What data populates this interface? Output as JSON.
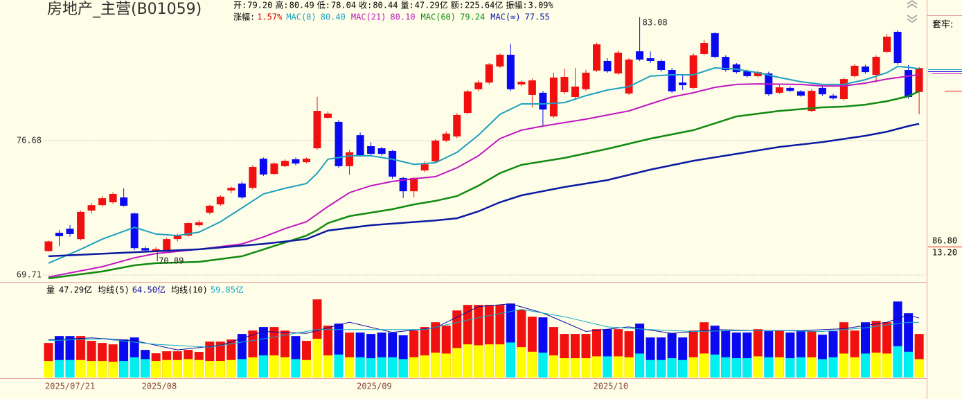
{
  "chart_data": [
    {
      "type": "candlestick",
      "title": "房地产_主营(B01059)",
      "quote": [
        {
          "label": "开:",
          "value": "79.20"
        },
        {
          "label": "高:",
          "value": "80.49"
        },
        {
          "label": "低:",
          "value": "78.04"
        },
        {
          "label": "收:",
          "value": "80.44"
        },
        {
          "label": "量:",
          "value": "47.29亿"
        },
        {
          "label": "额:",
          "value": "225.64亿"
        },
        {
          "label": "振幅:",
          "value": "3.09%"
        }
      ],
      "change": {
        "label": "涨幅:",
        "value": "1.57%",
        "color": "#e00000"
      },
      "categories": [
        "2025/07/21",
        null,
        null,
        null,
        null,
        null,
        null,
        null,
        null,
        "2025/08",
        null,
        null,
        null,
        null,
        null,
        null,
        null,
        null,
        null,
        null,
        null,
        null,
        null,
        null,
        null,
        null,
        null,
        null,
        null,
        "2025/09",
        null,
        null,
        null,
        null,
        null,
        null,
        null,
        null,
        null,
        null,
        null,
        null,
        null,
        null,
        null,
        null,
        null,
        null,
        null,
        null,
        null,
        "2025/10",
        null,
        null,
        null,
        null,
        null,
        null,
        null,
        null,
        null,
        null,
        null,
        null,
        null,
        null,
        null,
        null,
        null,
        null,
        null,
        null,
        null,
        null,
        null,
        null,
        null,
        null,
        null,
        null,
        null,
        null
      ],
      "open": [
        70.95,
        71.9,
        72.11,
        71.57,
        73.05,
        73.33,
        73.48,
        73.73,
        72.9,
        71.1,
        70.95,
        71.0,
        71.57,
        71.75,
        72.29,
        72.94,
        73.37,
        74.09,
        74.45,
        74.23,
        75.74,
        74.95,
        75.35,
        75.71,
        75.56,
        76.28,
        77.86,
        77.65,
        75.35,
        76.96,
        76.39,
        76.28,
        76.14,
        74.74,
        74.05,
        75.13,
        75.6,
        76.68,
        76.89,
        78.11,
        79.34,
        79.69,
        80.52,
        81.13,
        79.59,
        79.05,
        79.16,
        77.93,
        79.19,
        78.94,
        79.34,
        80.31,
        80.81,
        80.16,
        79.12,
        81.31,
        80.95,
        80.81,
        80.34,
        79.69,
        79.41,
        81.17,
        82.25,
        81.02,
        80.63,
        80.27,
        80.02,
        80.16,
        79.16,
        79.41,
        79.23,
        78.22,
        79.41,
        79.01,
        78.83,
        80.02,
        80.52,
        80.09,
        81.28,
        82.32,
        80.34,
        79.2
      ],
      "high": [
        71.5,
        72.05,
        72.3,
        73.05,
        73.45,
        73.8,
        74.0,
        74.2,
        72.95,
        71.2,
        71.15,
        71.65,
        71.85,
        72.45,
        72.55,
        73.35,
        73.85,
        74.3,
        74.55,
        75.4,
        75.8,
        75.55,
        75.7,
        75.8,
        75.8,
        78.95,
        78.2,
        77.75,
        76.2,
        77.1,
        76.6,
        76.35,
        76.2,
        74.8,
        74.8,
        75.6,
        76.75,
        77.15,
        78.1,
        79.3,
        79.8,
        80.7,
        81.2,
        81.7,
        79.8,
        79.9,
        79.25,
        80.2,
        80.4,
        80.45,
        80.35,
        81.75,
        80.95,
        81.35,
        80.95,
        83.08,
        81.3,
        80.9,
        80.45,
        80.1,
        81.2,
        81.9,
        82.3,
        81.1,
        80.7,
        80.35,
        80.3,
        80.25,
        79.55,
        79.5,
        79.3,
        79.35,
        79.5,
        79.1,
        79.95,
        80.65,
        80.6,
        81.1,
        82.2,
        82.4,
        80.6,
        80.49
      ],
      "low": [
        70.92,
        71.2,
        71.7,
        71.5,
        72.9,
        73.25,
        73.4,
        73.25,
        71.0,
        70.92,
        70.89,
        70.95,
        71.45,
        71.7,
        72.2,
        72.85,
        73.3,
        73.95,
        73.65,
        74.15,
        74.85,
        74.9,
        75.3,
        75.4,
        75.5,
        76.2,
        77.8,
        75.25,
        74.9,
        75.85,
        75.9,
        75.9,
        74.7,
        73.7,
        73.75,
        75.05,
        75.55,
        76.6,
        76.8,
        78.05,
        79.25,
        79.6,
        80.45,
        79.25,
        79.5,
        78.4,
        77.4,
        77.85,
        79.1,
        78.85,
        79.25,
        80.25,
        80.2,
        80.1,
        79.05,
        80.8,
        80.7,
        80.25,
        79.15,
        79.3,
        79.35,
        81.1,
        80.95,
        80.25,
        80.15,
        79.95,
        79.95,
        79.0,
        79.1,
        79.2,
        78.95,
        78.15,
        79.0,
        78.8,
        78.75,
        79.95,
        80.15,
        79.7,
        81.2,
        80.6,
        78.85,
        78.04
      ],
      "close": [
        71.45,
        71.72,
        71.83,
        72.98,
        73.33,
        73.69,
        73.91,
        73.3,
        71.1,
        70.98,
        71.05,
        71.57,
        71.75,
        72.4,
        72.44,
        73.3,
        73.77,
        74.23,
        73.73,
        75.31,
        74.92,
        75.49,
        75.63,
        75.49,
        75.74,
        78.22,
        78.08,
        75.35,
        76.07,
        75.92,
        75.99,
        75.99,
        74.81,
        74.05,
        74.74,
        75.45,
        76.68,
        77.04,
        78.01,
        79.23,
        79.69,
        80.63,
        81.13,
        79.34,
        79.73,
        79.8,
        78.29,
        79.95,
        79.98,
        79.48,
        80.2,
        81.67,
        80.27,
        81.24,
        80.88,
        80.88,
        80.81,
        80.34,
        79.23,
        79.55,
        81.1,
        81.74,
        81.02,
        80.34,
        80.23,
        80.02,
        80.23,
        79.08,
        79.44,
        79.26,
        79.01,
        79.26,
        79.08,
        78.87,
        79.87,
        80.56,
        80.23,
        81.02,
        82.07,
        80.7,
        78.94,
        80.44
      ],
      "up_color": "#f01010",
      "down_color": "#0a0af0",
      "series": [
        {
          "name": "MAC(8)",
          "color": "#1ea0c0",
          "width": 2,
          "value_label": "80.40",
          "x": [
            0,
            3,
            5,
            8,
            10,
            12,
            14,
            16,
            18,
            20,
            22,
            24,
            25,
            26,
            28,
            30,
            32,
            34,
            36,
            38,
            40,
            42,
            44,
            46,
            48,
            50,
            52,
            54,
            56,
            58,
            60,
            62,
            64,
            66,
            68,
            70,
            72,
            74,
            76,
            78,
            79,
            80,
            81
          ],
          "values": [
            70.32,
            71.04,
            71.57,
            72.18,
            71.83,
            71.75,
            71.93,
            72.47,
            73.19,
            73.91,
            74.2,
            74.45,
            74.99,
            75.71,
            75.89,
            75.89,
            75.71,
            75.45,
            75.53,
            76.07,
            76.96,
            78.04,
            78.58,
            78.58,
            78.65,
            79.01,
            79.3,
            79.48,
            80.02,
            80.09,
            80.09,
            80.45,
            80.38,
            80.2,
            79.95,
            79.73,
            79.59,
            79.59,
            79.84,
            80.2,
            80.52,
            80.48,
            80.4
          ]
        },
        {
          "name": "MAC(21)",
          "color": "#c018c0",
          "width": 2,
          "value_label": "80.10",
          "x": [
            0,
            5,
            8,
            10,
            14,
            18,
            20,
            22,
            24,
            26,
            28,
            30,
            32,
            34,
            36,
            38,
            40,
            42,
            44,
            46,
            50,
            54,
            56,
            58,
            60,
            62,
            64,
            66,
            70,
            72,
            74,
            76,
            78,
            80,
            81
          ],
          "values": [
            69.6,
            70.14,
            70.6,
            70.82,
            71.04,
            71.32,
            71.68,
            72.11,
            72.47,
            73.26,
            73.98,
            74.34,
            74.56,
            74.7,
            74.81,
            75.27,
            75.89,
            76.78,
            77.22,
            77.43,
            77.79,
            78.22,
            78.58,
            78.94,
            79.16,
            79.44,
            79.59,
            79.62,
            79.59,
            79.51,
            79.51,
            79.66,
            79.87,
            80.02,
            80.1
          ]
        },
        {
          "name": "MAC(60)",
          "color": "#108a10",
          "width": 2.5,
          "value_label": "79.24",
          "x": [
            0,
            5,
            8,
            10,
            14,
            18,
            22,
            24,
            25,
            26,
            28,
            32,
            34,
            36,
            38,
            40,
            42,
            44,
            48,
            52,
            56,
            60,
            62,
            64,
            68,
            72,
            74,
            76,
            78,
            80,
            81
          ],
          "values": [
            69.53,
            69.89,
            70.21,
            70.32,
            70.39,
            70.68,
            71.39,
            71.75,
            72.04,
            72.4,
            72.76,
            73.12,
            73.37,
            73.55,
            73.8,
            74.34,
            74.99,
            75.42,
            75.78,
            76.25,
            76.78,
            77.22,
            77.57,
            77.93,
            78.22,
            78.4,
            78.44,
            78.54,
            78.72,
            78.98,
            79.24
          ]
        },
        {
          "name": "MAC(∞)",
          "color": "#0a1aa0",
          "width": 2.5,
          "value_label": "77.55",
          "x": [
            0,
            8,
            14,
            20,
            24,
            26,
            30,
            36,
            38,
            40,
            42,
            44,
            48,
            52,
            56,
            60,
            64,
            68,
            72,
            76,
            78,
            80,
            81
          ],
          "values": [
            70.68,
            70.89,
            71.04,
            71.32,
            71.57,
            72.01,
            72.29,
            72.54,
            72.65,
            73.01,
            73.48,
            73.84,
            74.27,
            74.63,
            75.17,
            75.63,
            75.99,
            76.35,
            76.6,
            76.93,
            77.14,
            77.43,
            77.55
          ]
        }
      ],
      "ylim": [
        69.42,
        83.97
      ],
      "yticks": [
        69.71,
        76.68
      ],
      "grid": true
    },
    {
      "type": "bar",
      "title": "量",
      "current": "47.29亿",
      "values": [
        37.5,
        45,
        45,
        45,
        39.8,
        37.5,
        36,
        41.3,
        43.5,
        30,
        26.3,
        28.5,
        28.5,
        30,
        27.8,
        39,
        39,
        41.3,
        47.3,
        51,
        54.8,
        54.8,
        51,
        45,
        39.8,
        84.8,
        56.3,
        58.5,
        48.8,
        48.8,
        47.3,
        48.8,
        48.8,
        45.8,
        51,
        54.8,
        60,
        56.3,
        72.8,
        78.8,
        78.8,
        78.8,
        78.8,
        80.3,
        73.5,
        66,
        65.3,
        54.8,
        47.3,
        47.3,
        47.3,
        52.5,
        52.5,
        52.5,
        50.3,
        58.5,
        43.5,
        43.5,
        48,
        43.5,
        51,
        60,
        56.3,
        51,
        48.8,
        48.8,
        52.5,
        50.3,
        51,
        48.8,
        51,
        50.3,
        46.5,
        50.3,
        60,
        51,
        60,
        61.5,
        60,
        82.5,
        69.8,
        47.29
      ],
      "inner_values": [
        18,
        19,
        19,
        19,
        18,
        18,
        17,
        18,
        22,
        20,
        18,
        19,
        19,
        20,
        19,
        18,
        18,
        19,
        20,
        22,
        24,
        24,
        22,
        20,
        19,
        42,
        24,
        25,
        22,
        22,
        21,
        22,
        22,
        20,
        22,
        24,
        27,
        26,
        32,
        36,
        35,
        36,
        36,
        38,
        33,
        28,
        27,
        24,
        21,
        21,
        21,
        23,
        23,
        23,
        22,
        26,
        19,
        19,
        21,
        19,
        22,
        26,
        25,
        22,
        21,
        21,
        23,
        22,
        22,
        21,
        22,
        22,
        20,
        22,
        26,
        22,
        26,
        27,
        26,
        34,
        28,
        20
      ],
      "up_colors": [
        "#f01010",
        "#ffff00"
      ],
      "down_colors": [
        "#0a0af0",
        "#00f0f0"
      ],
      "series": [
        {
          "name": "均线(5)",
          "color": "#0a0aa0",
          "value_label": "64.50亿",
          "x": [
            0,
            4,
            8,
            12,
            16,
            20,
            24,
            28,
            32,
            36,
            40,
            43,
            46,
            50,
            54,
            58,
            62,
            66,
            70,
            74,
            78,
            80,
            81
          ],
          "values": [
            41,
            43,
            40,
            30,
            35,
            50,
            48,
            60,
            49,
            54,
            77,
            80,
            70,
            50,
            55,
            48,
            52,
            51,
            51,
            53,
            60,
            68,
            64.5
          ]
        },
        {
          "name": "均线(10)",
          "color": "#10a8c8",
          "value_label": "59.85亿",
          "x": [
            0,
            5,
            10,
            15,
            20,
            25,
            30,
            35,
            40,
            44,
            48,
            52,
            56,
            60,
            64,
            68,
            72,
            76,
            80,
            81
          ],
          "values": [
            40,
            42,
            36,
            33,
            42,
            52,
            52,
            52,
            65,
            74,
            66,
            55,
            52,
            50,
            51,
            51,
            50,
            54,
            60,
            59.85
          ]
        }
      ],
      "ylim": [
        0,
        100
      ]
    }
  ],
  "side_panel": {
    "title": "套牢:",
    "upper": "86.80",
    "lower": "13.20"
  }
}
